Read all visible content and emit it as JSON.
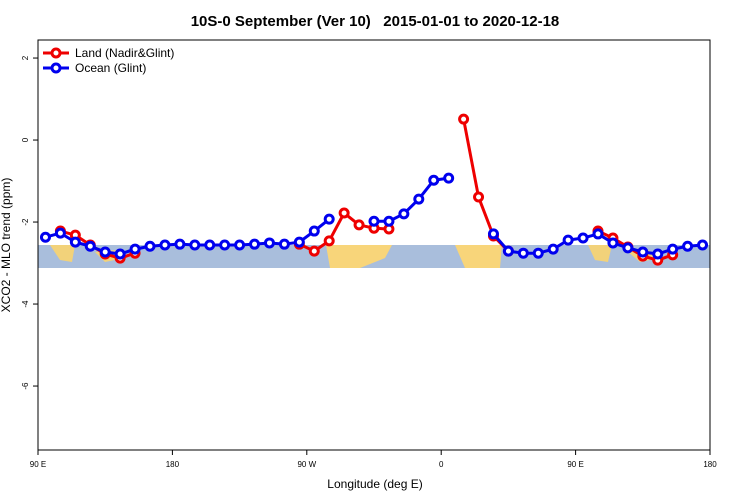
{
  "chart_data": {
    "type": "line",
    "title": "10S-0 September (Ver 10)   2015-01-01 to 2020-12-18",
    "x_label": "Longitude (deg E)",
    "y_label": "XCO2 - MLO trend (ppm)",
    "x": [
      95,
      105,
      115,
      125,
      135,
      145,
      155,
      165,
      175,
      185,
      195,
      205,
      215,
      225,
      235,
      245,
      255,
      265,
      275,
      285,
      295,
      305,
      315,
      325,
      335,
      345,
      355,
      365,
      375,
      385,
      395,
      405,
      415,
      425,
      435,
      445,
      455,
      465,
      475,
      485,
      495,
      505,
      515,
      525,
      535
    ],
    "series": [
      {
        "name": "Land (Nadir&Glint)",
        "color": "#ee0000",
        "values": [
          null,
          -2.22,
          -2.32,
          -2.56,
          -2.78,
          -2.88,
          -2.76,
          null,
          null,
          null,
          null,
          null,
          null,
          null,
          null,
          null,
          null,
          -2.54,
          -2.71,
          -2.46,
          -1.78,
          -2.07,
          -2.15,
          -2.17,
          null,
          null,
          null,
          null,
          0.51,
          -1.39,
          -2.34,
          -2.71,
          null,
          null,
          null,
          null,
          null,
          -2.22,
          -2.39,
          -2.61,
          -2.83,
          -2.93,
          -2.8,
          null,
          null
        ]
      },
      {
        "name": "Ocean (Glint)",
        "color": "#0000ee",
        "values": [
          -2.37,
          -2.27,
          -2.49,
          -2.59,
          -2.73,
          -2.78,
          -2.66,
          -2.59,
          -2.56,
          -2.54,
          -2.56,
          -2.56,
          -2.56,
          -2.56,
          -2.54,
          -2.51,
          -2.54,
          -2.49,
          -2.22,
          -1.93,
          null,
          null,
          -1.98,
          -1.98,
          -1.8,
          -1.44,
          -0.98,
          -0.93,
          null,
          null,
          -2.29,
          -2.71,
          -2.76,
          -2.76,
          -2.66,
          -2.44,
          -2.39,
          -2.29,
          -2.51,
          -2.63,
          -2.73,
          -2.78,
          -2.66,
          -2.59,
          -2.56
        ]
      }
    ],
    "xlim": [
      90,
      540
    ],
    "xticks": [
      {
        "value": 90,
        "label": "90 E"
      },
      {
        "value": 180,
        "label": "180"
      },
      {
        "value": 270,
        "label": "90 W"
      },
      {
        "value": 360,
        "label": "0"
      },
      {
        "value": 450,
        "label": "90 E"
      },
      {
        "value": 540,
        "label": "180"
      }
    ],
    "ylim": [
      -7.56,
      2.44
    ],
    "yticks": [
      -6,
      -4,
      -2,
      0,
      2
    ],
    "legend": "top-left"
  }
}
